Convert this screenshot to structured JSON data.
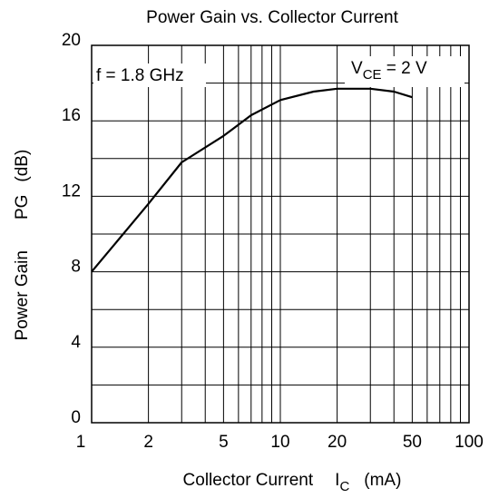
{
  "chart_data": {
    "type": "line",
    "title": "Power Gain vs. Collector Current",
    "x_label": {
      "main": "Collector Current",
      "symbol": "I",
      "sub": "C",
      "unit": "(mA)"
    },
    "y_label": {
      "main": "Power Gain",
      "symbol": "PG",
      "unit": "(dB)"
    },
    "annotations": [
      {
        "text": "f = 1.8 GHz"
      },
      {
        "text": "V",
        "sub": "CE",
        "rest": " = 2 V"
      }
    ],
    "x_log": true,
    "xlim": [
      1,
      100
    ],
    "xticks": [
      1,
      2,
      5,
      10,
      20,
      50,
      100
    ],
    "xminor": [
      3,
      4,
      6,
      7,
      8,
      9,
      30,
      40,
      60,
      70,
      80,
      90
    ],
    "ylim": [
      0,
      20
    ],
    "yticks": [
      0,
      4,
      8,
      12,
      16,
      20
    ],
    "yminor": [
      2,
      6,
      10,
      14,
      18
    ],
    "grid": true,
    "series": [
      {
        "color": "#000000",
        "x": [
          1,
          2,
          3,
          5,
          7,
          10,
          15,
          20,
          30,
          40,
          50
        ],
        "values": [
          8.0,
          11.6,
          13.8,
          15.2,
          16.3,
          17.1,
          17.55,
          17.7,
          17.7,
          17.55,
          17.25
        ]
      }
    ]
  }
}
